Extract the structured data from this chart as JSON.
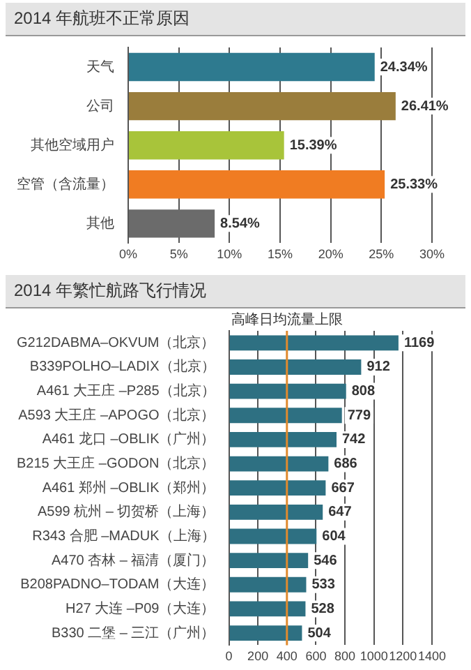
{
  "chart_data": [
    {
      "type": "bar",
      "orientation": "horizontal",
      "title": "2014 年航班不正常原因",
      "categories": [
        "天气",
        "公司",
        "其他空域用户",
        "空管（含流量）",
        "其他"
      ],
      "values": [
        24.34,
        26.41,
        15.39,
        25.33,
        8.54
      ],
      "colors": [
        "#2e7a8f",
        "#9a7d3c",
        "#a8c43a",
        "#f07c22",
        "#6b6b6b"
      ],
      "value_labels": [
        "24.34%",
        "26.41%",
        "15.39%",
        "25.33%",
        "8.54%"
      ],
      "xlim": [
        0,
        30
      ],
      "xticks": [
        {
          "value": 0,
          "label": "0%"
        },
        {
          "value": 5,
          "label": "5%"
        },
        {
          "value": 10,
          "label": "10%"
        },
        {
          "value": 15,
          "label": "15%"
        },
        {
          "value": 20,
          "label": "20%"
        },
        {
          "value": 25,
          "label": "25%"
        },
        {
          "value": 30,
          "label": "30%"
        }
      ],
      "grid": "x",
      "legend": false
    },
    {
      "type": "bar",
      "orientation": "horizontal",
      "title": "2014 年繁忙航路飞行情况",
      "categories": [
        "G212DABMA–OKVUM（北京）",
        "B339POLHO–LADIX（北京）",
        "A461 大王庄 –P285（北京）",
        "A593 大王庄 –APOGO（北京）",
        "A461 龙口 –OBLIK（广州）",
        "B215 大王庄 –GODON（北京）",
        "A461 郑州 –OBLIK（郑州）",
        "A599 杭州 – 切贺桥（上海）",
        "R343 合肥 –MADUK（上海）",
        "A470 杏林 – 福清（厦门）",
        "B208PADNO–TODAM（大连）",
        "H27 大连 –P09（大连）",
        "B330 二堡 – 三江（广州）"
      ],
      "values": [
        1169,
        912,
        808,
        779,
        742,
        686,
        667,
        647,
        604,
        546,
        533,
        528,
        504
      ],
      "color": "#2e7082",
      "data_labels": true,
      "xlim": [
        0,
        1400
      ],
      "xticks": [
        0,
        200,
        400,
        600,
        800,
        1000,
        1200,
        1400
      ],
      "grid": "x",
      "legend": false,
      "ref_lines": [
        {
          "axis": "x",
          "value": 400,
          "label": "高峰日均流量上限",
          "color": "#e08a2e"
        }
      ]
    }
  ]
}
